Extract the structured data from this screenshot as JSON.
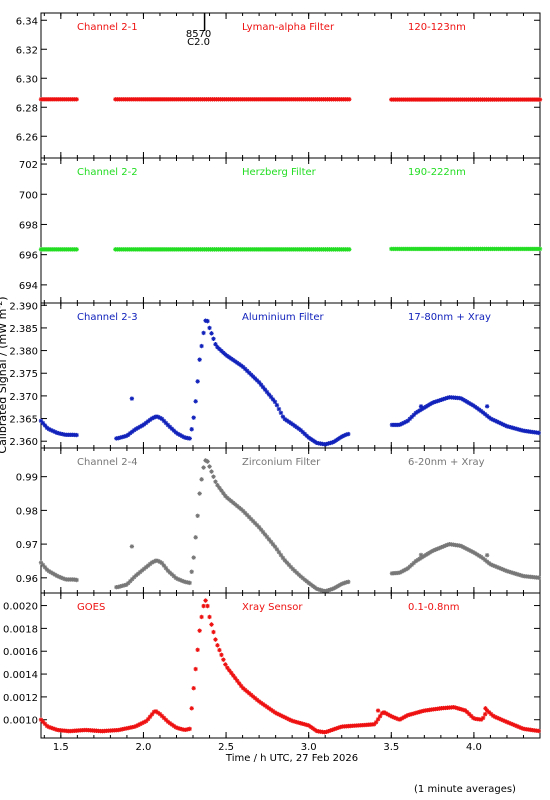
{
  "figure": {
    "ylabel_prefix": "Calibrated Signal / (mW m",
    "ylabel_sup": "-2",
    "ylabel_suffix": ")",
    "xlabel": "Time / h UTC, 27 Feb 2026",
    "footnote": "(1 minute averages)",
    "marker": {
      "text_line1": "8570",
      "text_line2": "C2.0",
      "x": 2.37
    }
  },
  "chart_data": [
    {
      "type": "scatter",
      "channel": "Channel 2-1",
      "filter": "Lyman-alpha Filter",
      "band": "120-123nm",
      "color": "#ee1111",
      "ylim": [
        6.245,
        6.345
      ],
      "yticks": [
        6.26,
        6.28,
        6.3,
        6.32,
        6.34
      ],
      "ytick_labels": [
        "6.26",
        "6.28",
        "6.30",
        "6.32",
        "6.34"
      ],
      "xlim": [
        1.38,
        4.4
      ],
      "segments": [
        {
          "x_start": 1.38,
          "x_end": 1.6,
          "y": 6.2855
        },
        {
          "x_start": 1.83,
          "x_end": 3.25,
          "y": 6.2855
        },
        {
          "x_start": 3.5,
          "x_end": 4.4,
          "y": 6.2853
        }
      ]
    },
    {
      "type": "scatter",
      "channel": "Channel 2-2",
      "filter": "Herzberg Filter",
      "band": "190-222nm",
      "color": "#22dd22",
      "ylim": [
        692.8,
        702.4
      ],
      "yticks": [
        694,
        696,
        698,
        700,
        702
      ],
      "ytick_labels": [
        "694",
        "696",
        "698",
        "700",
        "702"
      ],
      "xlim": [
        1.38,
        4.4
      ],
      "segments": [
        {
          "x_start": 1.38,
          "x_end": 1.6,
          "y": 696.35
        },
        {
          "x_start": 1.83,
          "x_end": 3.25,
          "y": 696.35
        },
        {
          "x_start": 3.5,
          "x_end": 4.4,
          "y": 696.38
        }
      ]
    },
    {
      "type": "scatter",
      "channel": "Channel 2-3",
      "filter": "Aluminium Filter",
      "band": "17-80nm + Xray",
      "color": "#1122bb",
      "ylim": [
        2.3585,
        2.3905
      ],
      "yticks": [
        2.36,
        2.365,
        2.37,
        2.375,
        2.38,
        2.385,
        2.39
      ],
      "ytick_labels": [
        "2.360",
        "2.365",
        "2.370",
        "2.375",
        "2.380",
        "2.385",
        "2.390"
      ],
      "xlim": [
        1.38,
        4.4
      ],
      "curve": [
        [
          1.38,
          2.3645
        ],
        [
          1.42,
          2.3628
        ],
        [
          1.48,
          2.3618
        ],
        [
          1.53,
          2.3614
        ],
        [
          1.58,
          2.3614
        ],
        [
          1.84,
          2.3606
        ],
        [
          1.9,
          2.3612
        ],
        [
          1.95,
          2.3626
        ],
        [
          2.0,
          2.3636
        ],
        [
          2.05,
          2.365
        ],
        [
          2.08,
          2.3655
        ],
        [
          2.11,
          2.365
        ],
        [
          2.15,
          2.3635
        ],
        [
          2.2,
          2.3618
        ],
        [
          2.25,
          2.3608
        ],
        [
          2.28,
          2.3606
        ],
        [
          2.3,
          2.364
        ],
        [
          2.32,
          2.37
        ],
        [
          2.34,
          2.378
        ],
        [
          2.36,
          2.383
        ],
        [
          2.38,
          2.3875
        ],
        [
          2.4,
          2.385
        ],
        [
          2.44,
          2.381
        ],
        [
          2.5,
          2.379
        ],
        [
          2.6,
          2.3765
        ],
        [
          2.7,
          2.373
        ],
        [
          2.8,
          2.3685
        ],
        [
          2.85,
          2.365
        ],
        [
          2.9,
          2.3638
        ],
        [
          2.95,
          2.3625
        ],
        [
          3.0,
          2.3608
        ],
        [
          3.05,
          2.3596
        ],
        [
          3.1,
          2.3593
        ],
        [
          3.15,
          2.3598
        ],
        [
          3.2,
          2.361
        ],
        [
          3.23,
          2.3615
        ],
        [
          3.5,
          2.3636
        ],
        [
          3.55,
          2.3636
        ],
        [
          3.6,
          2.3645
        ],
        [
          3.65,
          2.3663
        ],
        [
          3.75,
          2.3685
        ],
        [
          3.85,
          2.3697
        ],
        [
          3.92,
          2.3695
        ],
        [
          4.0,
          2.3678
        ],
        [
          4.05,
          2.3665
        ],
        [
          4.1,
          2.365
        ],
        [
          4.2,
          2.3633
        ],
        [
          4.3,
          2.3623
        ],
        [
          4.4,
          2.3618
        ]
      ],
      "outliers": [
        [
          1.93,
          2.3694
        ],
        [
          4.08,
          2.3677
        ],
        [
          3.68,
          2.3677
        ]
      ],
      "gaps": [
        [
          1.6,
          1.83
        ],
        [
          3.25,
          3.5
        ]
      ]
    },
    {
      "type": "scatter",
      "channel": "Channel 2-4",
      "filter": "Zirconium Filter",
      "band": "6-20nm + Xray",
      "color": "#777777",
      "ylim": [
        0.9555,
        0.9985
      ],
      "yticks": [
        0.96,
        0.97,
        0.98,
        0.99
      ],
      "ytick_labels": [
        "0.96",
        "0.97",
        "0.98",
        "0.99"
      ],
      "xlim": [
        1.38,
        4.4
      ],
      "curve": [
        [
          1.38,
          0.9645
        ],
        [
          1.42,
          0.9622
        ],
        [
          1.48,
          0.9605
        ],
        [
          1.53,
          0.9595
        ],
        [
          1.58,
          0.9595
        ],
        [
          1.84,
          0.9572
        ],
        [
          1.9,
          0.958
        ],
        [
          1.95,
          0.9605
        ],
        [
          2.0,
          0.9625
        ],
        [
          2.05,
          0.9645
        ],
        [
          2.08,
          0.9652
        ],
        [
          2.11,
          0.9645
        ],
        [
          2.15,
          0.962
        ],
        [
          2.2,
          0.9598
        ],
        [
          2.25,
          0.9588
        ],
        [
          2.28,
          0.9585
        ],
        [
          2.3,
          0.964
        ],
        [
          2.32,
          0.974
        ],
        [
          2.34,
          0.985
        ],
        [
          2.36,
          0.992
        ],
        [
          2.38,
          0.9955
        ],
        [
          2.4,
          0.993
        ],
        [
          2.44,
          0.988
        ],
        [
          2.5,
          0.984
        ],
        [
          2.6,
          0.98
        ],
        [
          2.7,
          0.975
        ],
        [
          2.8,
          0.969
        ],
        [
          2.85,
          0.9655
        ],
        [
          2.9,
          0.9628
        ],
        [
          2.95,
          0.9605
        ],
        [
          3.0,
          0.9585
        ],
        [
          3.05,
          0.9567
        ],
        [
          3.1,
          0.956
        ],
        [
          3.15,
          0.9568
        ],
        [
          3.2,
          0.9582
        ],
        [
          3.23,
          0.9587
        ],
        [
          3.5,
          0.9613
        ],
        [
          3.55,
          0.9615
        ],
        [
          3.6,
          0.9628
        ],
        [
          3.65,
          0.965
        ],
        [
          3.75,
          0.968
        ],
        [
          3.85,
          0.97
        ],
        [
          3.92,
          0.9695
        ],
        [
          4.0,
          0.9675
        ],
        [
          4.05,
          0.966
        ],
        [
          4.1,
          0.964
        ],
        [
          4.2,
          0.962
        ],
        [
          4.3,
          0.9605
        ],
        [
          4.4,
          0.96
        ]
      ],
      "outliers": [
        [
          1.93,
          0.9693
        ],
        [
          4.08,
          0.9667
        ],
        [
          3.68,
          0.9668
        ]
      ],
      "gaps": [
        [
          1.6,
          1.83
        ],
        [
          3.25,
          3.5
        ]
      ]
    },
    {
      "type": "scatter",
      "channel": "GOES",
      "filter": "Xray Sensor",
      "band": "0.1-0.8nm",
      "color": "#ee1111",
      "ylim": [
        0.00084,
        0.00211
      ],
      "yticks": [
        0.001,
        0.0012,
        0.0014,
        0.0016,
        0.0018,
        0.002
      ],
      "ytick_labels": [
        "0.0010",
        "0.0012",
        "0.0014",
        "0.0016",
        "0.0018",
        "0.0020"
      ],
      "xlim": [
        1.38,
        4.4
      ],
      "curve": [
        [
          1.38,
          0.001
        ],
        [
          1.42,
          0.00094
        ],
        [
          1.48,
          0.00091
        ],
        [
          1.55,
          0.0009
        ],
        [
          1.65,
          0.00091
        ],
        [
          1.75,
          0.0009
        ],
        [
          1.85,
          0.00091
        ],
        [
          1.95,
          0.00094
        ],
        [
          2.02,
          0.00099
        ],
        [
          2.07,
          0.00108
        ],
        [
          2.1,
          0.00105
        ],
        [
          2.15,
          0.00098
        ],
        [
          2.2,
          0.00093
        ],
        [
          2.25,
          0.00091
        ],
        [
          2.28,
          0.00092
        ],
        [
          2.3,
          0.00122
        ],
        [
          2.32,
          0.0015
        ],
        [
          2.34,
          0.00178
        ],
        [
          2.36,
          0.00198
        ],
        [
          2.38,
          0.00206
        ],
        [
          2.4,
          0.0019
        ],
        [
          2.44,
          0.00168
        ],
        [
          2.5,
          0.00147
        ],
        [
          2.6,
          0.00128
        ],
        [
          2.7,
          0.00116
        ],
        [
          2.8,
          0.00106
        ],
        [
          2.9,
          0.00099
        ],
        [
          3.0,
          0.00095
        ],
        [
          3.05,
          0.0009
        ],
        [
          3.1,
          0.00089
        ],
        [
          3.2,
          0.00094
        ],
        [
          3.3,
          0.00095
        ],
        [
          3.4,
          0.00096
        ],
        [
          3.45,
          0.00107
        ],
        [
          3.5,
          0.00103
        ],
        [
          3.55,
          0.001
        ],
        [
          3.6,
          0.00104
        ],
        [
          3.7,
          0.00108
        ],
        [
          3.8,
          0.0011
        ],
        [
          3.88,
          0.00111
        ],
        [
          3.95,
          0.00108
        ],
        [
          4.0,
          0.00101
        ],
        [
          4.05,
          0.001
        ],
        [
          4.08,
          0.00108
        ],
        [
          4.12,
          0.00103
        ],
        [
          4.2,
          0.00098
        ],
        [
          4.3,
          0.00092
        ],
        [
          4.4,
          0.0009
        ]
      ],
      "outliers": [
        [
          3.42,
          0.00108
        ],
        [
          4.07,
          0.0011
        ]
      ],
      "gaps": []
    }
  ],
  "xaxis": {
    "xlim": [
      1.38,
      4.4
    ],
    "ticks": [
      1.5,
      2.0,
      2.5,
      3.0,
      3.5,
      4.0
    ],
    "tick_labels": [
      "1.5",
      "2.0",
      "2.5",
      "3.0",
      "3.5",
      "4.0"
    ]
  }
}
